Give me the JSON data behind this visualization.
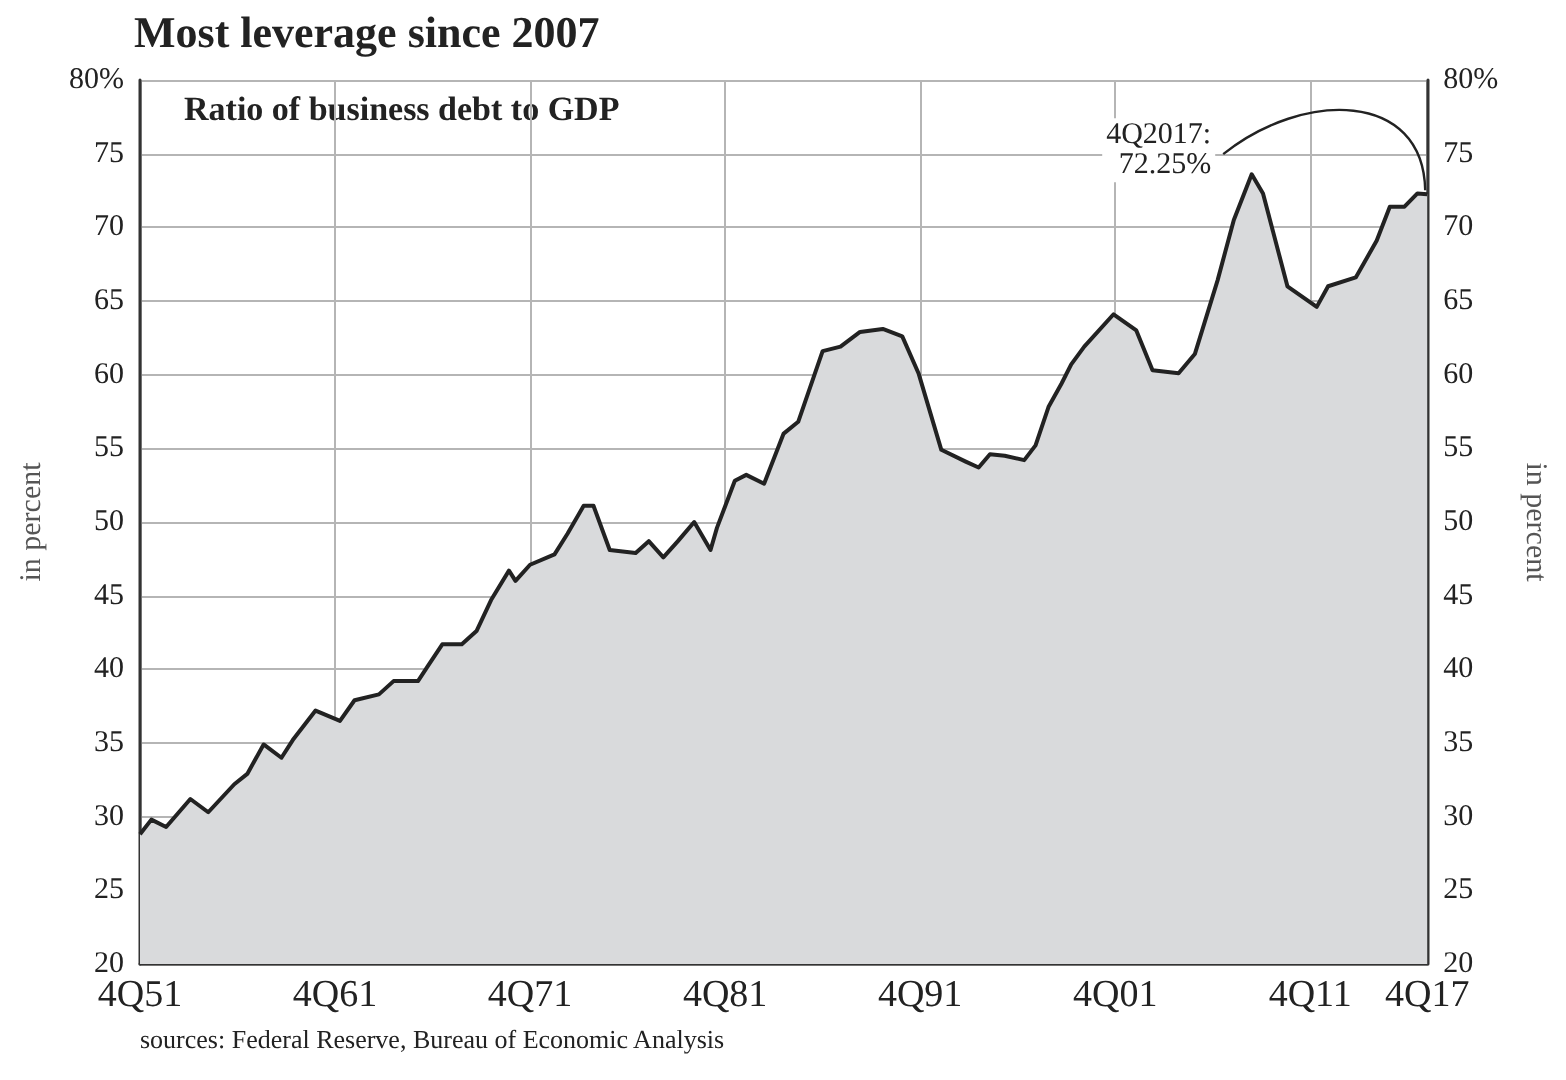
{
  "chart_data": {
    "type": "area",
    "title": "Most leverage since 2007",
    "subtitle": "Ratio of business debt to GDP",
    "ylabel": "in percent",
    "y2label": "in percent",
    "x": [
      "1951-10",
      "1952-05",
      "1953-02",
      "1954-05",
      "1955-04",
      "1956-08",
      "1957-04",
      "1958-02",
      "1959-01",
      "1959-08",
      "1960-10",
      "1962-01",
      "1962-10",
      "1964-01",
      "1964-10",
      "1966-01",
      "1966-07",
      "1967-04",
      "1968-04",
      "1969-01",
      "1969-10",
      "1970-09",
      "1971-01",
      "1971-10",
      "1973-01",
      "1973-09",
      "1974-07",
      "1975-01",
      "1975-11",
      "1977-03",
      "1977-11",
      "1978-08",
      "1979-05",
      "1980-03",
      "1981-01",
      "1981-05",
      "1982-04",
      "1982-11",
      "1983-10",
      "1984-10",
      "1985-07",
      "1986-10",
      "1987-09",
      "1988-09",
      "1989-11",
      "1990-11",
      "1991-09",
      "1992-11",
      "1994-02",
      "1994-10",
      "1995-05",
      "1996-02",
      "1997-02",
      "1997-09",
      "1998-05",
      "1999-01",
      "1999-07",
      "2000-03",
      "2001-09",
      "2002-11",
      "2003-09",
      "2005-01",
      "2005-11",
      "2007-01",
      "2007-11",
      "2008-10",
      "2009-05",
      "2010-08",
      "2012-02",
      "2012-09",
      "2014-02",
      "2015-03",
      "2015-11",
      "2016-08",
      "2017-04",
      "2017-10"
    ],
    "series": [
      {
        "color": "#222222",
        "values": [
          28.8,
          29.8,
          29.3,
          31.2,
          30.3,
          32.2,
          32.9,
          34.9,
          34.0,
          35.2,
          37.2,
          36.5,
          37.9,
          38.3,
          39.2,
          39.2,
          40.2,
          41.7,
          41.7,
          42.6,
          44.7,
          46.7,
          46.0,
          47.1,
          47.8,
          49.2,
          51.1,
          51.1,
          48.1,
          47.9,
          48.7,
          47.6,
          48.7,
          50.0,
          48.1,
          49.6,
          52.8,
          53.2,
          52.6,
          56.0,
          56.8,
          61.6,
          61.9,
          62.9,
          63.1,
          62.6,
          60.1,
          54.9,
          54.1,
          53.7,
          54.6,
          54.5,
          54.2,
          55.2,
          57.8,
          59.4,
          60.7,
          61.9,
          64.1,
          63.0,
          60.3,
          60.1,
          61.4,
          66.4,
          70.5,
          73.6,
          72.3,
          66.0,
          64.6,
          66.0,
          66.6,
          69.1,
          71.4,
          71.4,
          72.3,
          72.25
        ]
      }
    ],
    "xlim": [
      "1951-10",
      "2017-10"
    ],
    "xticks": [
      {
        "value": "1951-10",
        "label": "4Q51"
      },
      {
        "value": "1961-10",
        "label": "4Q61"
      },
      {
        "value": "1971-10",
        "label": "4Q71"
      },
      {
        "value": "1981-10",
        "label": "4Q81"
      },
      {
        "value": "1991-10",
        "label": "4Q91"
      },
      {
        "value": "2001-10",
        "label": "4Q01"
      },
      {
        "value": "2011-10",
        "label": "4Q11"
      },
      {
        "value": "2017-10",
        "label": "4Q17"
      }
    ],
    "ylim": [
      20,
      80
    ],
    "yticks": [
      20,
      25,
      30,
      35,
      40,
      45,
      50,
      55,
      60,
      65,
      70,
      75,
      {
        "value": 80,
        "label": "80%"
      }
    ],
    "y2lim": [
      20,
      80
    ],
    "y2ticks": [
      20,
      25,
      30,
      35,
      40,
      45,
      50,
      55,
      60,
      65,
      70,
      75,
      {
        "value": 80,
        "label": "80%"
      }
    ],
    "grid": true,
    "annotations": [
      {
        "text": "4Q2017:\n72.25%",
        "x": "2017-10",
        "y": 72.25
      },
      "sources: Federal Reserve, Bureau of Economic Analysis"
    ]
  }
}
